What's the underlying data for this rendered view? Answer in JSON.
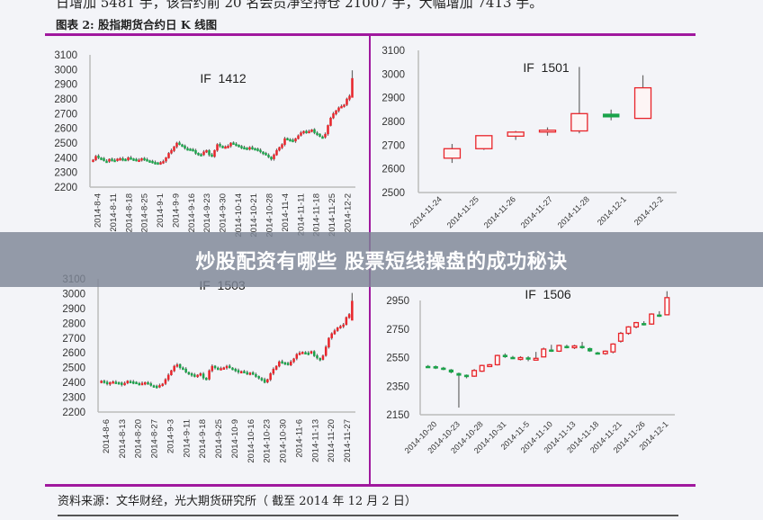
{
  "header": {
    "intro_text": "日增加 5481 手，该合约前 20 名会员净空持仓 21007 手，大幅增加 7413 手。",
    "figure_title": "图表 2: 股指期货合约日 K 线图"
  },
  "banner": {
    "title": "炒股配资有哪些 股票短线操盘的成功秘诀"
  },
  "footer": {
    "source": "资料来源：文华财经，光大期货研究所（ 截至 2014 年 12 月 2 日）"
  },
  "colors": {
    "accent_line": "#a0189e",
    "up": "#e8242a",
    "down": "#1aa34a",
    "wick": "#666666",
    "axis": "#bbbbbb"
  },
  "chart_data": [
    {
      "type": "candlestick",
      "title": "IF 1412",
      "ylim": [
        2200,
        3100
      ],
      "yticks": [
        2200,
        2300,
        2400,
        2500,
        2600,
        2700,
        2800,
        2900,
        3000,
        3100
      ],
      "xticks": [
        "2014-8-4",
        "2014-8-11",
        "2014-8-18",
        "2014-8-25",
        "2014-9-1",
        "2014-9-9",
        "2014-9-16",
        "2014-9-23",
        "2014-9-30",
        "2014-10-14",
        "2014-10-21",
        "2014-10-28",
        "2014-11-4",
        "2014-11-11",
        "2014-11-18",
        "2014-11-25",
        "2014-12-2"
      ],
      "close_series": [
        2385,
        2410,
        2400,
        2395,
        2380,
        2375,
        2390,
        2385,
        2380,
        2392,
        2395,
        2388,
        2385,
        2400,
        2395,
        2390,
        2380,
        2385,
        2395,
        2390,
        2380,
        2375,
        2370,
        2365,
        2362,
        2368,
        2375,
        2400,
        2430,
        2450,
        2475,
        2500,
        2490,
        2480,
        2465,
        2460,
        2455,
        2450,
        2430,
        2425,
        2420,
        2440,
        2450,
        2420,
        2410,
        2450,
        2490,
        2480,
        2470,
        2475,
        2480,
        2500,
        2495,
        2485,
        2480,
        2470,
        2465,
        2460,
        2470,
        2465,
        2460,
        2450,
        2440,
        2430,
        2420,
        2405,
        2390,
        2420,
        2450,
        2470,
        2490,
        2530,
        2525,
        2520,
        2515,
        2530,
        2550,
        2570,
        2580,
        2575,
        2580,
        2590,
        2570,
        2560,
        2545,
        2540,
        2560,
        2620,
        2670,
        2700,
        2720,
        2740,
        2750,
        2760,
        2800,
        2820,
        2940
      ]
    },
    {
      "type": "candlestick",
      "title": "IF 1501",
      "ylim": [
        2500,
        3100
      ],
      "yticks": [
        2500,
        2600,
        2700,
        2800,
        2900,
        3000,
        3100
      ],
      "xticks": [
        "2014-11-24",
        "2014-11-25",
        "2014-11-26",
        "2014-11-27",
        "2014-11-28",
        "2014-12-1",
        "2014-12-2"
      ],
      "ohlc": [
        {
          "date": "2014-11-24",
          "open": 2645,
          "high": 2705,
          "low": 2625,
          "close": 2685
        },
        {
          "date": "2014-11-25",
          "open": 2685,
          "high": 2740,
          "low": 2680,
          "close": 2740
        },
        {
          "date": "2014-11-26",
          "open": 2738,
          "high": 2760,
          "low": 2722,
          "close": 2755
        },
        {
          "date": "2014-11-27",
          "open": 2760,
          "high": 2775,
          "low": 2740,
          "close": 2763
        },
        {
          "date": "2014-11-28",
          "open": 2760,
          "high": 3030,
          "low": 2750,
          "close": 2833
        },
        {
          "date": "2014-12-1",
          "open": 2832,
          "high": 2850,
          "low": 2805,
          "close": 2818
        },
        {
          "date": "2014-12-2",
          "open": 2813,
          "high": 2995,
          "low": 2813,
          "close": 2942
        }
      ]
    },
    {
      "type": "candlestick",
      "title": "IF 1503",
      "ylim": [
        2200,
        3100
      ],
      "yticks": [
        2200,
        2300,
        2400,
        2500,
        2600,
        2700,
        2800,
        2900,
        3000,
        3100
      ],
      "xticks": [
        "2014-8-6",
        "2014-8-13",
        "2014-8-20",
        "2014-8-27",
        "2014-9-3",
        "2014-9-11",
        "2014-9-18",
        "2014-9-25",
        "2014-10-9",
        "2014-10-16",
        "2014-10-23",
        "2014-10-30",
        "2014-11-6",
        "2014-11-13",
        "2014-11-20",
        "2014-11-27"
      ],
      "close_series": [
        2410,
        2400,
        2390,
        2400,
        2405,
        2400,
        2395,
        2385,
        2395,
        2410,
        2405,
        2400,
        2395,
        2390,
        2395,
        2400,
        2390,
        2380,
        2375,
        2370,
        2380,
        2390,
        2420,
        2450,
        2480,
        2510,
        2520,
        2500,
        2490,
        2470,
        2460,
        2450,
        2440,
        2450,
        2460,
        2430,
        2420,
        2480,
        2510,
        2500,
        2490,
        2495,
        2500,
        2510,
        2500,
        2490,
        2480,
        2470,
        2475,
        2470,
        2460,
        2465,
        2455,
        2440,
        2430,
        2420,
        2400,
        2420,
        2460,
        2490,
        2510,
        2540,
        2535,
        2530,
        2520,
        2540,
        2560,
        2590,
        2600,
        2605,
        2600,
        2595,
        2610,
        2580,
        2565,
        2555,
        2580,
        2640,
        2700,
        2730,
        2750,
        2770,
        2780,
        2790,
        2840,
        2860,
        2950
      ]
    },
    {
      "type": "candlestick",
      "title": "IF 1506",
      "ylim": [
        2150,
        3050
      ],
      "yticks": [
        2150,
        2350,
        2550,
        2750,
        2950
      ],
      "xticks": [
        "2014-10-20",
        "2014-10-23",
        "2014-10-28",
        "2014-10-31",
        "2014-11-5",
        "2014-11-10",
        "2014-11-13",
        "2014-11-18",
        "2014-11-21",
        "2014-11-26",
        "2014-12-1"
      ],
      "ohlc": [
        {
          "open": 2490,
          "high": 2498,
          "low": 2480,
          "close": 2485
        },
        {
          "open": 2488,
          "high": 2495,
          "low": 2470,
          "close": 2475
        },
        {
          "open": 2478,
          "high": 2485,
          "low": 2462,
          "close": 2468
        },
        {
          "open": 2465,
          "high": 2470,
          "low": 2440,
          "close": 2448
        },
        {
          "open": 2440,
          "high": 2445,
          "low": 2200,
          "close": 2425
        },
        {
          "open": 2428,
          "high": 2432,
          "low": 2405,
          "close": 2415
        },
        {
          "open": 2420,
          "high": 2470,
          "low": 2415,
          "close": 2460
        },
        {
          "open": 2455,
          "high": 2500,
          "low": 2450,
          "close": 2495
        },
        {
          "open": 2490,
          "high": 2505,
          "low": 2485,
          "close": 2500
        },
        {
          "open": 2500,
          "high": 2570,
          "low": 2495,
          "close": 2565
        },
        {
          "open": 2568,
          "high": 2580,
          "low": 2548,
          "close": 2555
        },
        {
          "open": 2553,
          "high": 2562,
          "low": 2540,
          "close": 2548
        },
        {
          "open": 2545,
          "high": 2560,
          "low": 2530,
          "close": 2550
        },
        {
          "open": 2550,
          "high": 2560,
          "low": 2525,
          "close": 2540
        },
        {
          "open": 2535,
          "high": 2590,
          "low": 2530,
          "close": 2545
        },
        {
          "open": 2555,
          "high": 2620,
          "low": 2555,
          "close": 2610
        },
        {
          "open": 2605,
          "high": 2640,
          "low": 2590,
          "close": 2595
        },
        {
          "open": 2595,
          "high": 2640,
          "low": 2590,
          "close": 2635
        },
        {
          "open": 2630,
          "high": 2640,
          "low": 2615,
          "close": 2620
        },
        {
          "open": 2625,
          "high": 2640,
          "low": 2610,
          "close": 2632
        },
        {
          "open": 2630,
          "high": 2660,
          "low": 2612,
          "close": 2618
        },
        {
          "open": 2615,
          "high": 2620,
          "low": 2590,
          "close": 2595
        },
        {
          "open": 2585,
          "high": 2590,
          "low": 2575,
          "close": 2578
        },
        {
          "open": 2578,
          "high": 2600,
          "low": 2570,
          "close": 2595
        },
        {
          "open": 2590,
          "high": 2650,
          "low": 2580,
          "close": 2645
        },
        {
          "open": 2665,
          "high": 2730,
          "low": 2655,
          "close": 2720
        },
        {
          "open": 2720,
          "high": 2770,
          "low": 2710,
          "close": 2765
        },
        {
          "open": 2765,
          "high": 2800,
          "low": 2755,
          "close": 2795
        },
        {
          "open": 2790,
          "high": 2805,
          "low": 2775,
          "close": 2785
        },
        {
          "open": 2785,
          "high": 2860,
          "low": 2780,
          "close": 2855
        },
        {
          "open": 2850,
          "high": 2875,
          "low": 2835,
          "close": 2845
        },
        {
          "open": 2850,
          "high": 3015,
          "low": 2850,
          "close": 2970
        }
      ]
    }
  ]
}
